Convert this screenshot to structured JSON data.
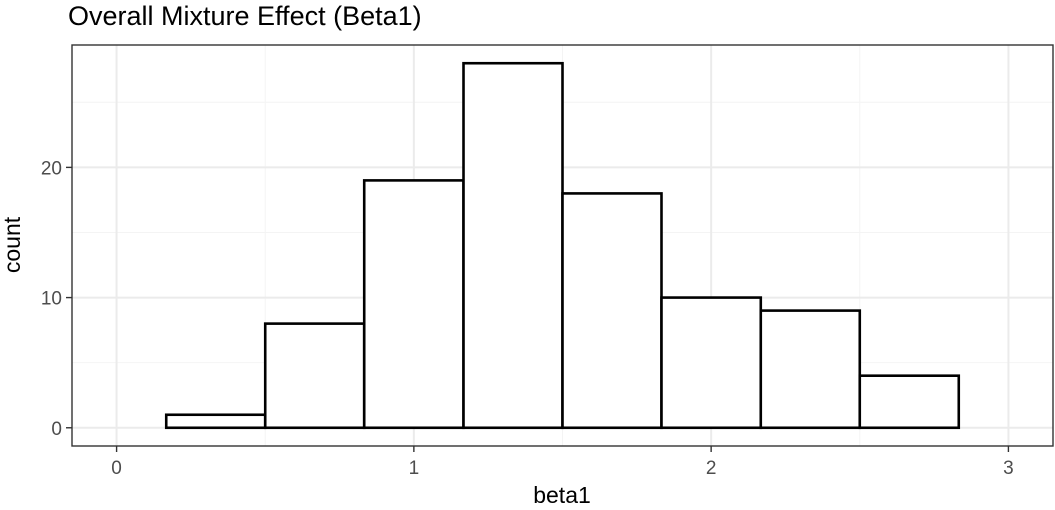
{
  "chart_data": {
    "type": "bar",
    "title": "Overall Mixture Effect (Beta1)",
    "xlabel": "beta1",
    "ylabel": "count",
    "bins": [
      {
        "x0": 0.167,
        "x1": 0.5,
        "count": 1
      },
      {
        "x0": 0.5,
        "x1": 0.833,
        "count": 8
      },
      {
        "x0": 0.833,
        "x1": 1.167,
        "count": 19
      },
      {
        "x0": 1.167,
        "x1": 1.5,
        "count": 28
      },
      {
        "x0": 1.5,
        "x1": 1.833,
        "count": 18
      },
      {
        "x0": 1.833,
        "x1": 2.167,
        "count": 10
      },
      {
        "x0": 2.167,
        "x1": 2.5,
        "count": 9
      },
      {
        "x0": 2.5,
        "x1": 2.833,
        "count": 4
      }
    ],
    "xlim": [
      -0.15,
      3.15
    ],
    "ylim": [
      -1.4,
      29.4
    ],
    "x_ticks": [
      0,
      1,
      2,
      3
    ],
    "x_tick_labels": [
      "0",
      "1",
      "2",
      "3"
    ],
    "x_minor_ticks": [
      0.5,
      1.5,
      2.5
    ],
    "y_ticks": [
      0,
      10,
      20
    ],
    "y_tick_labels": [
      "0",
      "10",
      "20"
    ],
    "y_minor_ticks": [
      5,
      15,
      25
    ],
    "grid": true,
    "legend": "none",
    "colors": {
      "bar_fill": "#ffffff",
      "bar_stroke": "#000000",
      "panel_border": "#333333",
      "grid_major": "#ebebeb",
      "grid_minor": "#f4f4f4",
      "tick_text": "#4d4d4d",
      "tick_mark": "#333333"
    }
  }
}
